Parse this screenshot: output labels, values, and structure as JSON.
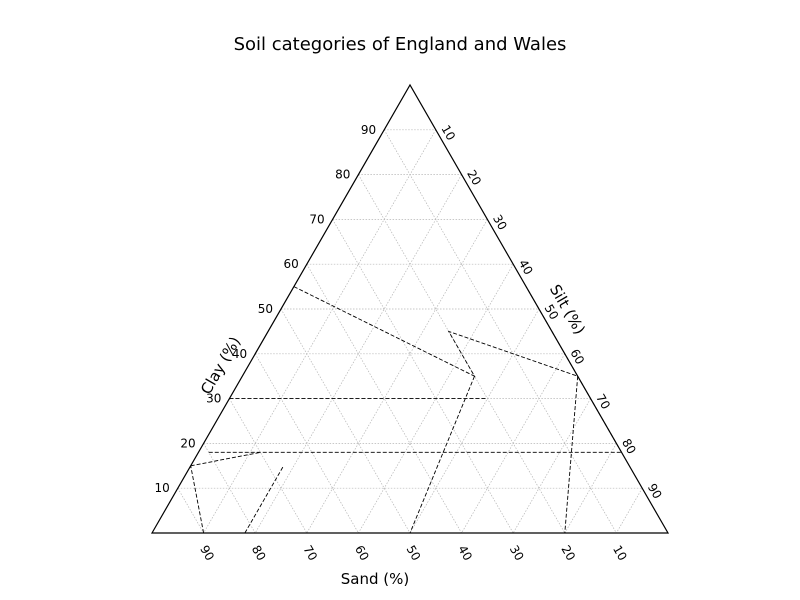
{
  "chart_data": {
    "type": "ternary",
    "title": "Soil categories of England and Wales",
    "axes": {
      "clay": {
        "label": "Clay (%)",
        "ticks": [
          10,
          20,
          30,
          40,
          50,
          60,
          70,
          80,
          90
        ]
      },
      "silt": {
        "label": "Silt (%)",
        "ticks": [
          10,
          20,
          30,
          40,
          50,
          60,
          70,
          80,
          90
        ]
      },
      "sand": {
        "label": "Sand (%)",
        "ticks": [
          90,
          80,
          70,
          60,
          50,
          40,
          30,
          20,
          10
        ]
      }
    },
    "grid": true,
    "boundaries": [
      {
        "points": [
          [
            82,
            0
          ],
          [
            67,
            15
          ]
        ]
      },
      {
        "points": [
          [
            90,
            0
          ],
          [
            85,
            15
          ]
        ]
      },
      {
        "points": [
          [
            85,
            15
          ],
          [
            70,
            18
          ]
        ]
      },
      {
        "points": [
          [
            45,
            55
          ],
          [
            20,
            35
          ],
          [
            20,
            45
          ],
          [
            0,
            35
          ],
          [
            0,
            18
          ]
        ]
      },
      {
        "points": [
          [
            80,
            18
          ],
          [
            0,
            18
          ]
        ]
      },
      {
        "points": [
          [
            70,
            30
          ],
          [
            20,
            30
          ]
        ]
      },
      {
        "points": [
          [
            20,
            35
          ],
          [
            50,
            0
          ]
        ]
      },
      {
        "points": [
          [
            0,
            35
          ],
          [
            20,
            0
          ]
        ]
      },
      {
        "points": [
          [
            0,
            35
          ],
          [
            0,
            55
          ]
        ]
      }
    ]
  }
}
